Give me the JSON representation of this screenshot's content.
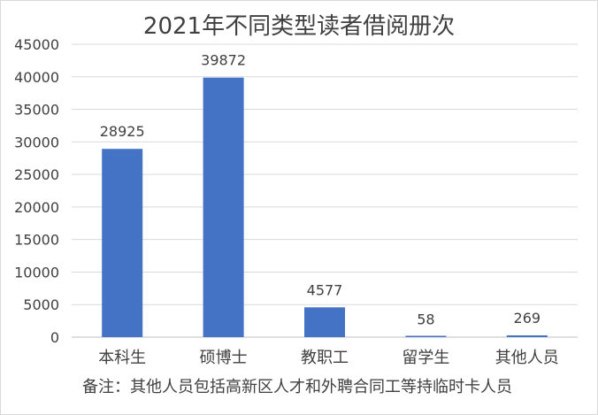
{
  "chart_data": {
    "type": "bar",
    "title": "2021年不同类型读者借阅册次",
    "categories": [
      "本科生",
      "硕博士",
      "教职工",
      "留学生",
      "其他人员"
    ],
    "values": [
      28925,
      39872,
      4577,
      58,
      269
    ],
    "data_labels": [
      "28925",
      "39872",
      "4577",
      "58",
      "269"
    ],
    "xlabel": "",
    "ylabel": "",
    "ylim": [
      0,
      45000
    ],
    "yticks": [
      0,
      5000,
      10000,
      15000,
      20000,
      25000,
      30000,
      35000,
      40000,
      45000
    ],
    "ytick_labels": [
      "0",
      "5000",
      "10000",
      "15000",
      "20000",
      "25000",
      "30000",
      "35000",
      "40000",
      "45000"
    ],
    "grid": true,
    "legend": "none",
    "bar_color": "#4472C4",
    "gridline_color": "#D9D9D9",
    "text_color": "#404040",
    "note": "备注：其他人员包括高新区人才和外聘合同工等持临时卡人员"
  }
}
